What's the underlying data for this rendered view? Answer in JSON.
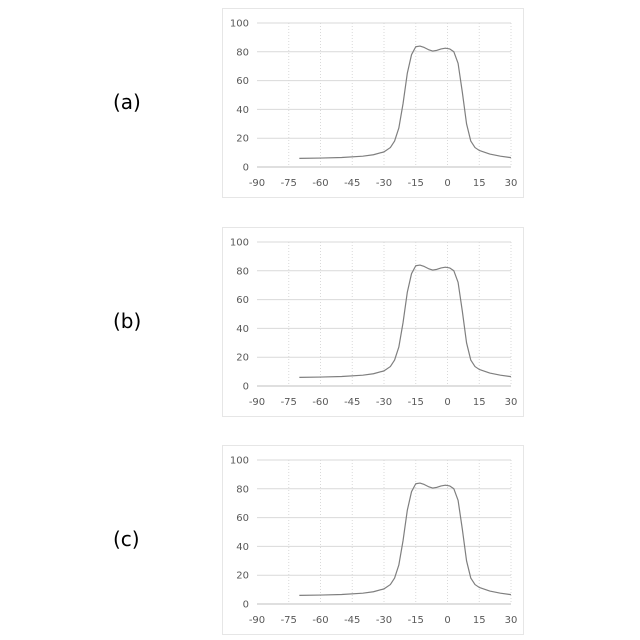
{
  "chart_data": [
    {
      "panel": "(a)",
      "type": "line",
      "title": "",
      "xlabel": "",
      "ylabel": "",
      "xlim": [
        -90,
        30
      ],
      "ylim": [
        0,
        100
      ],
      "x_ticks": [
        -90,
        -75,
        -60,
        -45,
        -30,
        -15,
        0,
        15,
        30
      ],
      "y_ticks": [
        0,
        20,
        40,
        60,
        80,
        100
      ],
      "grid": true,
      "legend": "none",
      "line_color": "#7f7f7f",
      "series": [
        {
          "x": [
            -70,
            -60,
            -50,
            -40,
            -35,
            -30,
            -27,
            -25,
            -23,
            -21,
            -19,
            -17,
            -15,
            -13,
            -11,
            -9,
            -7,
            -5,
            -3,
            -1,
            1,
            3,
            5,
            7,
            9,
            11,
            13,
            15,
            20,
            25,
            30
          ],
          "y": [
            6,
            6.2,
            6.6,
            7.5,
            8.5,
            10.5,
            13.5,
            18,
            27,
            44,
            65,
            78,
            83.5,
            84,
            83,
            81.5,
            80.5,
            81,
            82,
            82.5,
            82,
            80,
            72,
            52,
            30,
            18,
            13.5,
            11.5,
            9,
            7.5,
            6.5
          ]
        }
      ]
    },
    {
      "panel": "(b)",
      "type": "line",
      "title": "",
      "xlabel": "",
      "ylabel": "",
      "xlim": [
        -90,
        30
      ],
      "ylim": [
        0,
        100
      ],
      "x_ticks": [
        -90,
        -75,
        -60,
        -45,
        -30,
        -15,
        0,
        15,
        30
      ],
      "y_ticks": [
        0,
        20,
        40,
        60,
        80,
        100
      ],
      "grid": true,
      "legend": "none",
      "line_color": "#7f7f7f",
      "series": [
        {
          "x": [
            -70,
            -60,
            -50,
            -40,
            -35,
            -30,
            -27,
            -25,
            -23,
            -21,
            -19,
            -17,
            -15,
            -13,
            -11,
            -9,
            -7,
            -5,
            -3,
            -1,
            1,
            3,
            5,
            7,
            9,
            11,
            13,
            15,
            20,
            25,
            30
          ],
          "y": [
            6,
            6.2,
            6.6,
            7.5,
            8.5,
            10.5,
            13.5,
            18,
            27,
            44,
            65,
            78,
            83.5,
            84,
            83,
            81.5,
            80.5,
            81,
            82,
            82.5,
            82,
            80,
            72,
            52,
            30,
            18,
            13.5,
            11.5,
            9,
            7.5,
            6.5
          ]
        }
      ]
    },
    {
      "panel": "(c)",
      "type": "line",
      "title": "",
      "xlabel": "",
      "ylabel": "",
      "xlim": [
        -90,
        30
      ],
      "ylim": [
        0,
        100
      ],
      "x_ticks": [
        -90,
        -75,
        -60,
        -45,
        -30,
        -15,
        0,
        15,
        30
      ],
      "y_ticks": [
        0,
        20,
        40,
        60,
        80,
        100
      ],
      "grid": true,
      "legend": "none",
      "line_color": "#7f7f7f",
      "series": [
        {
          "x": [
            -70,
            -60,
            -50,
            -40,
            -35,
            -30,
            -27,
            -25,
            -23,
            -21,
            -19,
            -17,
            -15,
            -13,
            -11,
            -9,
            -7,
            -5,
            -3,
            -1,
            1,
            3,
            5,
            7,
            9,
            11,
            13,
            15,
            20,
            25,
            30
          ],
          "y": [
            6,
            6.2,
            6.6,
            7.5,
            8.5,
            10.5,
            13.5,
            18,
            27,
            44,
            65,
            78,
            83.5,
            84,
            83,
            81.5,
            80.5,
            81,
            82,
            82.5,
            82,
            80,
            72,
            52,
            30,
            18,
            13.5,
            11.5,
            9,
            7.5,
            6.5
          ]
        }
      ]
    }
  ]
}
